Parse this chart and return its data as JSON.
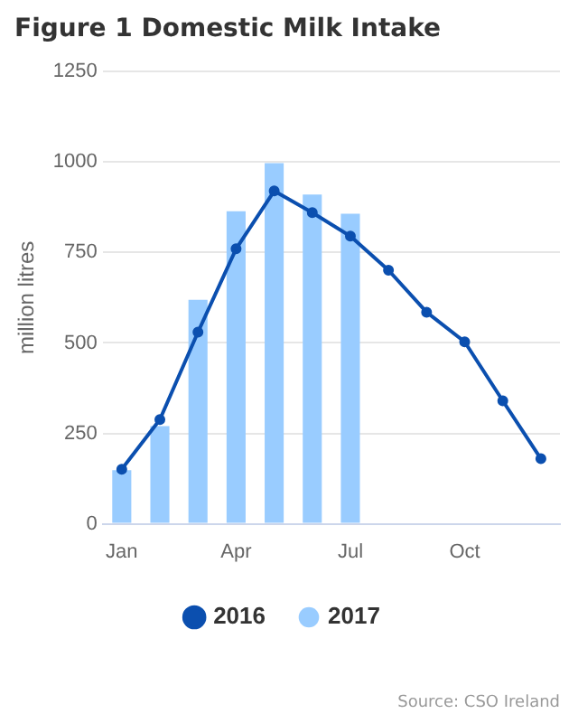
{
  "chart_data": {
    "type": "bar",
    "title": "Figure 1 Domestic Milk Intake",
    "ylabel": "million litres",
    "categories": [
      "Jan",
      null,
      null,
      "Apr",
      null,
      null,
      "Jul",
      null,
      null,
      "Oct",
      null,
      null
    ],
    "series": [
      {
        "name": "2016",
        "type": "line",
        "color": "#0b4faf",
        "marker": "circle",
        "values": [
          151,
          288,
          530,
          760,
          920,
          860,
          795,
          701,
          585,
          503,
          340,
          180
        ]
      },
      {
        "name": "2017",
        "color": "#99ccff",
        "values": [
          148,
          270,
          619,
          864,
          997,
          910,
          857,
          null,
          null,
          null,
          null,
          null
        ]
      }
    ],
    "ylim": [
      0,
      1250
    ],
    "yticks": [
      0,
      250,
      500,
      750,
      1000,
      1250
    ],
    "grid": "y",
    "legend": "bottom",
    "annotations": [
      "Source: CSO Ireland"
    ]
  }
}
